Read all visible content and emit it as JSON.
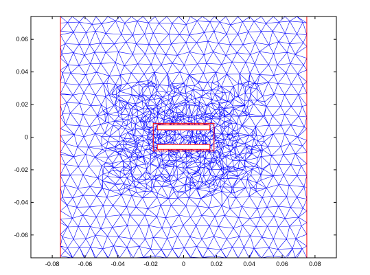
{
  "chart_data": {
    "type": "mesh",
    "title": "",
    "xlabel": "",
    "ylabel": "",
    "xlim": [
      -0.093,
      0.093
    ],
    "ylim": [
      -0.074,
      0.074
    ],
    "grid": false,
    "xticks": [
      {
        "value": -0.08,
        "label": "-0.08"
      },
      {
        "value": -0.06,
        "label": "-0.06"
      },
      {
        "value": -0.04,
        "label": "-0.04"
      },
      {
        "value": -0.02,
        "label": "-0.02"
      },
      {
        "value": 0,
        "label": "0"
      },
      {
        "value": 0.02,
        "label": "0.02"
      },
      {
        "value": 0.04,
        "label": "0.04"
      },
      {
        "value": 0.06,
        "label": "0.06"
      },
      {
        "value": 0.08,
        "label": "0.08"
      }
    ],
    "yticks": [
      {
        "value": -0.06,
        "label": "-0.06"
      },
      {
        "value": -0.04,
        "label": "-0.04"
      },
      {
        "value": -0.02,
        "label": "-0.02"
      },
      {
        "value": 0,
        "label": "0"
      },
      {
        "value": 0.02,
        "label": "0.02"
      },
      {
        "value": 0.04,
        "label": "0.04"
      },
      {
        "value": 0.06,
        "label": "0.06"
      }
    ],
    "domain_boundary": {
      "x": [
        -0.075,
        0.075
      ],
      "y": [
        -0.074,
        0.074
      ]
    },
    "inner_conductors": [
      {
        "x": [
          -0.016,
          0.016
        ],
        "y": [
          0.0045,
          0.0075
        ]
      },
      {
        "x": [
          -0.016,
          0.016
        ],
        "y": [
          -0.0075,
          -0.0045
        ]
      }
    ],
    "inner_frame": {
      "x": [
        -0.0185,
        0.0185
      ],
      "y": [
        -0.0085,
        0.0085
      ]
    },
    "colors": {
      "mesh": "#0000ff",
      "boundary": "#ff0000",
      "axes": "#000000",
      "background": "#ffffff"
    }
  }
}
